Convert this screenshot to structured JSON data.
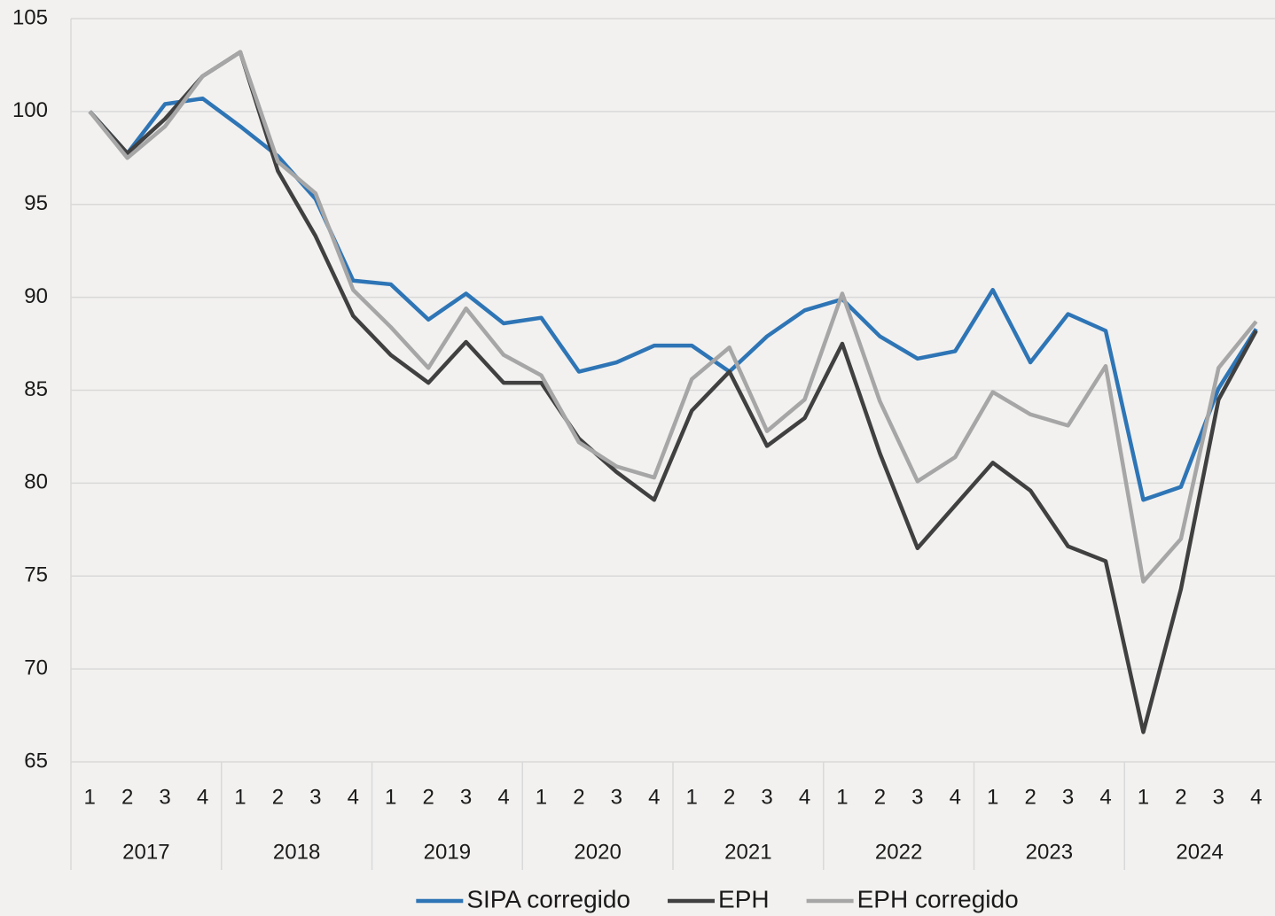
{
  "chart_data": {
    "type": "line",
    "categories": [
      "1",
      "2",
      "3",
      "4",
      "1",
      "2",
      "3",
      "4",
      "1",
      "2",
      "3",
      "4",
      "1",
      "2",
      "3",
      "4",
      "1",
      "2",
      "3",
      "4",
      "1",
      "2",
      "3",
      "4",
      "1",
      "2",
      "3",
      "4",
      "1",
      "2",
      "3",
      "4"
    ],
    "year_groups": [
      "2017",
      "2018",
      "2019",
      "2020",
      "2021",
      "2022",
      "2023",
      "2024"
    ],
    "series": [
      {
        "name": "SIPA corregido",
        "color": "#2e75b6",
        "values": [
          100,
          97.75,
          100.4,
          100.7,
          99.2,
          97.6,
          95.3,
          90.9,
          90.7,
          88.8,
          90.2,
          88.6,
          88.9,
          86.0,
          86.5,
          87.4,
          87.4,
          86.0,
          87.9,
          89.3,
          89.9,
          87.9,
          86.7,
          87.1,
          90.4,
          86.5,
          89.1,
          88.2,
          79.1,
          79.8,
          85.1,
          88.3
        ]
      },
      {
        "name": "EPH",
        "color": "#404040",
        "values": [
          100,
          97.75,
          99.6,
          101.9,
          103.2,
          96.8,
          93.3,
          89.0,
          86.9,
          85.4,
          87.6,
          85.4,
          85.4,
          82.4,
          80.6,
          79.1,
          83.9,
          86.0,
          82.0,
          83.5,
          87.5,
          81.6,
          76.5,
          78.8,
          81.1,
          79.6,
          76.6,
          75.8,
          66.6,
          74.3,
          84.5,
          88.2
        ]
      },
      {
        "name": "EPH corregido",
        "color": "#a6a6a6",
        "values": [
          100,
          97.5,
          99.2,
          101.9,
          103.2,
          97.3,
          95.6,
          90.4,
          88.4,
          86.2,
          89.4,
          86.9,
          85.8,
          82.2,
          80.9,
          80.3,
          85.6,
          87.3,
          82.8,
          84.5,
          90.2,
          84.4,
          80.1,
          81.4,
          84.9,
          83.7,
          83.1,
          86.3,
          74.7,
          77.0,
          86.2,
          88.7
        ]
      }
    ],
    "ylim": [
      65,
      105
    ],
    "yticks": [
      65,
      70,
      75,
      80,
      85,
      90,
      95,
      100,
      105
    ],
    "grid": true,
    "legend": "bottom"
  }
}
